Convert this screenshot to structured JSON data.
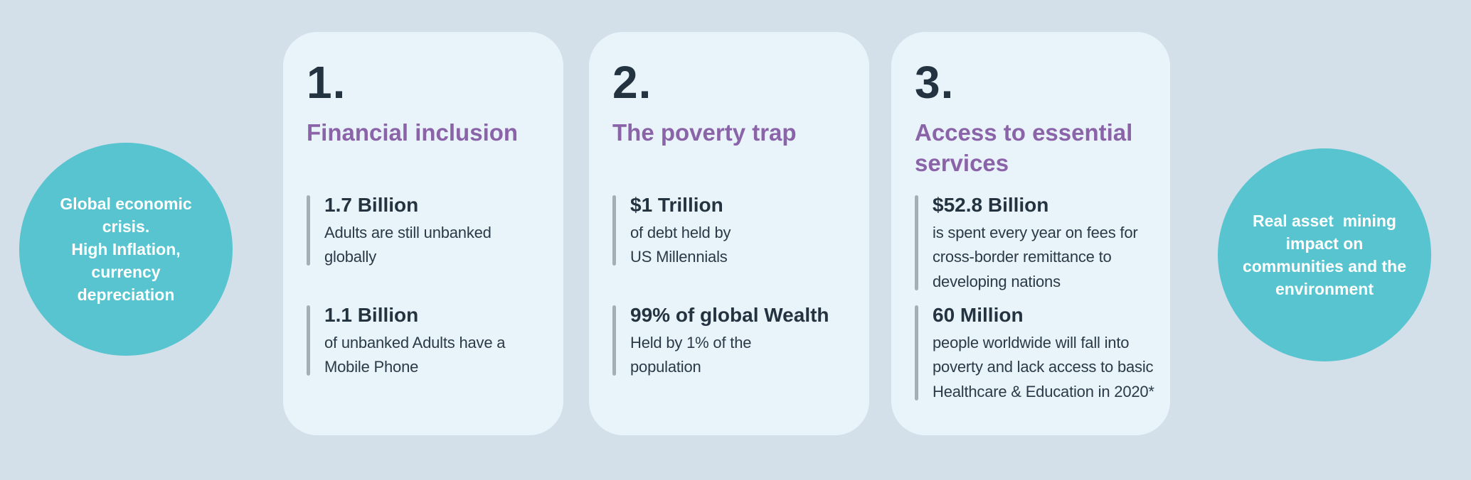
{
  "colors": {
    "background": "#d3e0ea",
    "card_bg": "#e9f3fa",
    "circle_bg": "#57c4cf",
    "accent_purple": "#8a63a8",
    "text_dark": "#243340",
    "stat_bar_gray": "#a3aeb5",
    "circle_text": "#ffffff"
  },
  "left_circle": {
    "text": "Global economic\ncrisis.\nHigh Inflation,\ncurrency\ndepreciation"
  },
  "right_circle": {
    "text": "Real asset  mining\nimpact on\ncommunities and the\nenvironment"
  },
  "cards": [
    {
      "number": "1.",
      "title": "Financial inclusion",
      "stats": [
        {
          "value": "1.7 Billion",
          "desc": "Adults are still unbanked\nglobally"
        },
        {
          "value": "1.1 Billion",
          "desc": "of unbanked Adults have a\nMobile Phone"
        }
      ]
    },
    {
      "number": "2.",
      "title": "The poverty trap",
      "stats": [
        {
          "value": "$1 Trillion",
          "desc": "of debt held by\nUS Millennials"
        },
        {
          "value": "99% of global Wealth",
          "desc": "Held by 1% of the\npopulation"
        }
      ]
    },
    {
      "number": "3.",
      "title": "Access to essential\nservices",
      "stats": [
        {
          "value": "$52.8 Billion",
          "desc": "is spent every year on fees for\ncross-border remittance to\ndeveloping nations"
        },
        {
          "value": "60 Million",
          "desc": "people worldwide will fall into\npoverty and lack access to basic\nHealthcare & Education in 2020*"
        }
      ]
    }
  ]
}
